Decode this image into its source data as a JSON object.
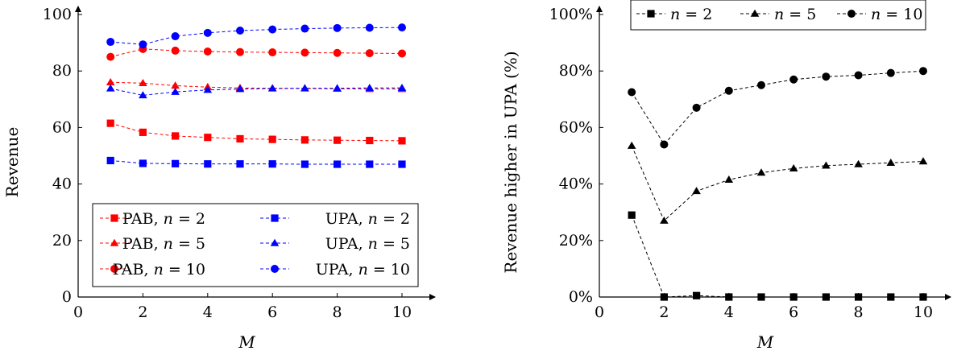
{
  "chart_data": [
    {
      "type": "line",
      "xlabel": "M",
      "ylabel": "Revenue",
      "xlim": [
        0,
        10.9
      ],
      "ylim": [
        0,
        100
      ],
      "xticks": [
        0,
        2,
        4,
        6,
        8,
        10
      ],
      "yticks": [
        0,
        20,
        40,
        60,
        80,
        100
      ],
      "grid": false,
      "legend_position": "bottom-right",
      "x": [
        1,
        2,
        3,
        4,
        5,
        6,
        7,
        8,
        9,
        10
      ],
      "series": [
        {
          "name": "PAB, n = 2",
          "color": "#ff0000",
          "marker": "square",
          "values": [
            61.5,
            58.3,
            57.0,
            56.5,
            56.0,
            55.8,
            55.6,
            55.5,
            55.4,
            55.3
          ]
        },
        {
          "name": "UPA, n = 2",
          "color": "#0000ff",
          "marker": "square",
          "values": [
            48.3,
            47.3,
            47.2,
            47.1,
            47.1,
            47.1,
            47.0,
            47.0,
            47.0,
            47.0
          ]
        },
        {
          "name": "PAB, n = 5",
          "color": "#ff0000",
          "marker": "triangle",
          "values": [
            76.0,
            75.7,
            74.8,
            74.3,
            74.0,
            73.9,
            73.8,
            73.7,
            73.6,
            73.6
          ]
        },
        {
          "name": "UPA, n = 5",
          "color": "#0000ff",
          "marker": "triangle",
          "values": [
            73.8,
            71.4,
            72.6,
            73.3,
            73.6,
            73.8,
            73.9,
            73.9,
            74.0,
            74.0
          ]
        },
        {
          "name": "PAB, n = 10",
          "color": "#ff0000",
          "marker": "circle",
          "values": [
            85.0,
            87.8,
            87.2,
            86.9,
            86.7,
            86.6,
            86.5,
            86.4,
            86.3,
            86.2
          ]
        },
        {
          "name": "UPA, n = 10",
          "color": "#0000ff",
          "marker": "circle",
          "values": [
            90.3,
            89.4,
            92.3,
            93.5,
            94.3,
            94.7,
            95.0,
            95.2,
            95.3,
            95.4
          ]
        }
      ]
    },
    {
      "type": "line",
      "xlabel": "M",
      "ylabel": "Revenue higher in UPA (%)",
      "xlim": [
        0,
        10.9
      ],
      "ylim": [
        0,
        100
      ],
      "xticks": [
        0,
        2,
        4,
        6,
        8,
        10
      ],
      "yticks": [
        0,
        20,
        40,
        60,
        80,
        100
      ],
      "ytick_labels": [
        "0%",
        "20%",
        "40%",
        "60%",
        "80%",
        "100%"
      ],
      "grid": false,
      "legend_position": "top",
      "x": [
        1,
        2,
        3,
        4,
        5,
        6,
        7,
        8,
        9,
        10
      ],
      "series": [
        {
          "name": "n = 2",
          "color": "#000000",
          "marker": "square",
          "values": [
            29.0,
            0.0,
            0.5,
            0.0,
            0.0,
            0.0,
            0.0,
            0.0,
            0.0,
            0.0
          ]
        },
        {
          "name": "n = 5",
          "color": "#000000",
          "marker": "triangle",
          "values": [
            53.5,
            27.0,
            37.5,
            41.5,
            44.0,
            45.5,
            46.5,
            47.0,
            47.5,
            48.0
          ]
        },
        {
          "name": "n = 10",
          "color": "#000000",
          "marker": "circle",
          "values": [
            72.5,
            54.0,
            67.0,
            73.0,
            75.0,
            77.0,
            78.0,
            78.5,
            79.3,
            80.0
          ]
        }
      ]
    }
  ]
}
